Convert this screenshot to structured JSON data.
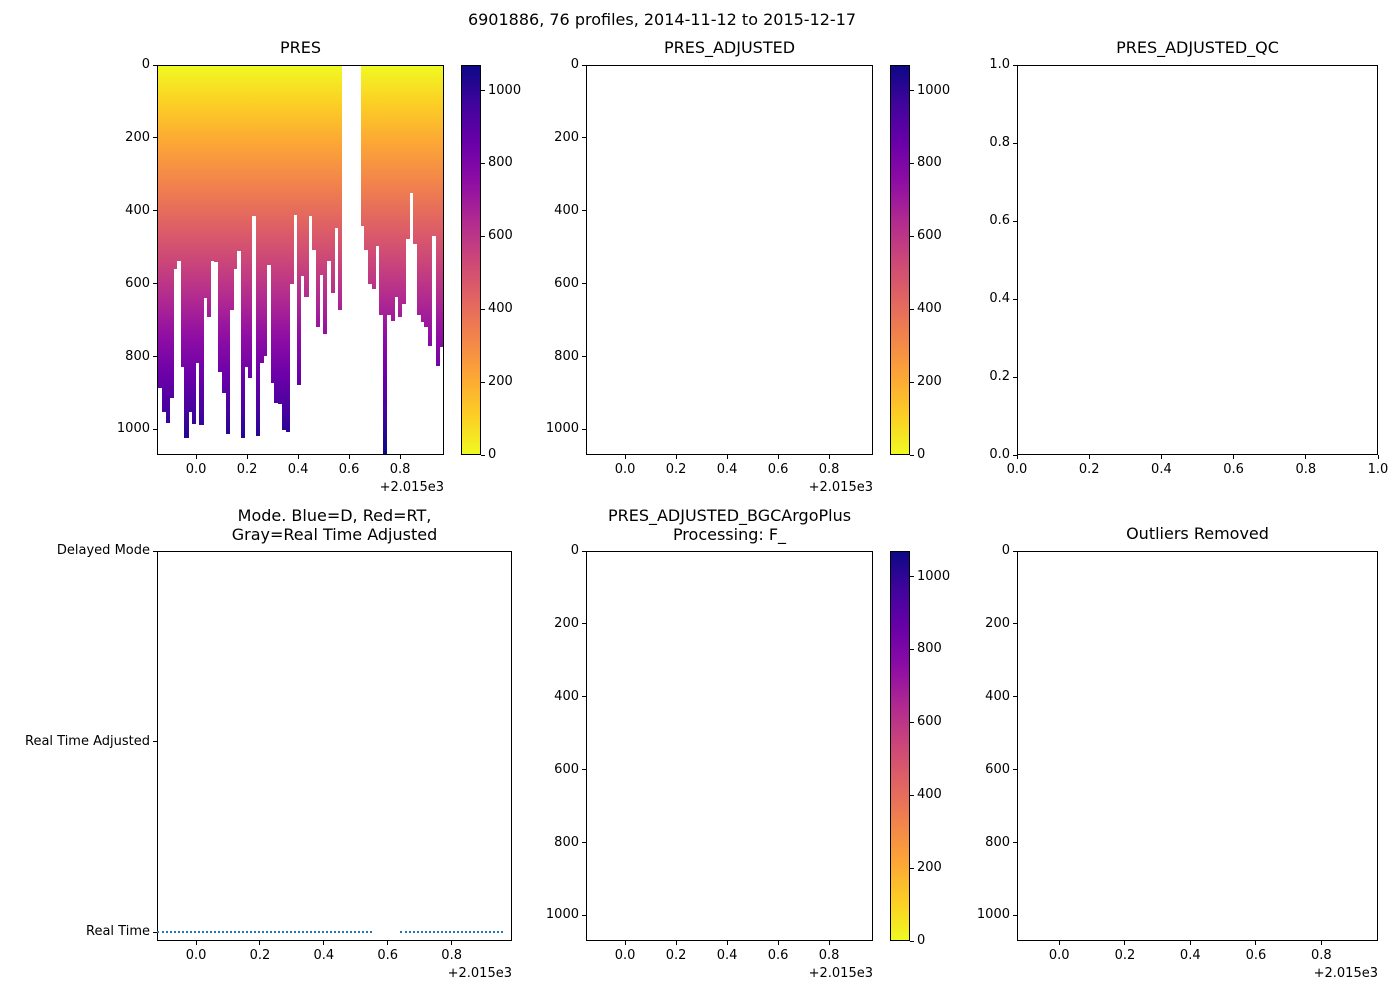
{
  "figure": {
    "suptitle": "6901886, 76 profiles, 2014-11-12 to 2015-12-17",
    "float_id": "6901886",
    "n_profiles": 76,
    "date_range": "2014-11-12 to 2015-12-17",
    "background": "#ffffff"
  },
  "colors": {
    "text": "#000000",
    "axis": "#000000",
    "mode_line_blue": "#1f77b4",
    "plasma_r_stops": [
      "#f0f921",
      "#fcce25",
      "#fca636",
      "#f2844b",
      "#e16462",
      "#cc4778",
      "#b12a90",
      "#8f0da4",
      "#6a00a8",
      "#41049d",
      "#0d0887"
    ]
  },
  "chart_data": [
    {
      "id": "pres",
      "type": "heatmap",
      "title": "PRES",
      "x_ticks": [
        "0.0",
        "0.2",
        "0.4",
        "0.6",
        "0.8"
      ],
      "x_offset_label": "+2.015e3",
      "y_ticks": [
        "0",
        "200",
        "400",
        "600",
        "800",
        "1000"
      ],
      "ylim": [
        0,
        1070
      ],
      "y_inverted": true,
      "colormap": "plasma_r",
      "colorbar": {
        "ticks": [
          "0",
          "200",
          "400",
          "600",
          "800",
          "1000"
        ],
        "vmin": 0,
        "vmax": 1070
      },
      "n_profiles": 76,
      "profile_max_pres": [
        888,
        953,
        985,
        916,
        560,
        537,
        830,
        1025,
        953,
        986,
        820,
        991,
        640,
        691,
        537,
        541,
        843,
        903,
        1014,
        672,
        560,
        510,
        1025,
        830,
        860,
        413,
        1020,
        820,
        800,
        550,
        875,
        930,
        932,
        1005,
        1010,
        600,
        410,
        880,
        580,
        636,
        413,
        508,
        720,
        577,
        739,
        538,
        627,
        446,
        674,
        null,
        null,
        null,
        null,
        null,
        441,
        508,
        600,
        614,
        497,
        688,
        1070,
        688,
        702,
        636,
        692,
        655,
        478,
        349,
        492,
        688,
        707,
        720,
        772,
        469,
        827,
        776
      ]
    },
    {
      "id": "pres_adjusted",
      "type": "heatmap",
      "title": "PRES_ADJUSTED",
      "x_ticks": [
        "0.0",
        "0.2",
        "0.4",
        "0.6",
        "0.8"
      ],
      "x_offset_label": "+2.015e3",
      "y_ticks": [
        "0",
        "200",
        "400",
        "600",
        "800",
        "1000"
      ],
      "ylim": [
        0,
        1070
      ],
      "y_inverted": true,
      "colormap": "plasma_r",
      "colorbar": {
        "ticks": [
          "0",
          "200",
          "400",
          "600",
          "800",
          "1000"
        ],
        "vmin": 0,
        "vmax": 1070
      },
      "values": "empty"
    },
    {
      "id": "pres_adjusted_qc",
      "type": "scatter",
      "title": "PRES_ADJUSTED_QC",
      "x_ticks": [
        "0.0",
        "0.2",
        "0.4",
        "0.6",
        "0.8",
        "1.0"
      ],
      "y_ticks": [
        "1.0",
        "0.8",
        "0.6",
        "0.4",
        "0.2",
        "0.0"
      ],
      "xlim": [
        0,
        1
      ],
      "ylim": [
        0,
        1
      ],
      "values": "empty"
    },
    {
      "id": "mode",
      "type": "line",
      "title_lines": [
        "Mode. Blue=D, Red=RT,",
        "Gray=Real Time Adjusted"
      ],
      "x_ticks": [
        "0.0",
        "0.2",
        "0.4",
        "0.6",
        "0.8"
      ],
      "x_offset_label": "+2.015e3",
      "y_categories": [
        "Delayed Mode",
        "Real Time Adjusted",
        "Real Time"
      ],
      "xlim": [
        -0.122,
        0.989
      ],
      "line": {
        "value": "Real Time",
        "color": "#1f77b4",
        "style": "dotted",
        "segments_x": [
          [
            -0.122,
            0.55
          ],
          [
            0.64,
            0.96
          ]
        ]
      }
    },
    {
      "id": "pres_adjusted_bgcargoplus",
      "type": "heatmap",
      "title_lines": [
        "PRES_ADJUSTED_BGCArgoPlus",
        "Processing: F_"
      ],
      "x_ticks": [
        "0.0",
        "0.2",
        "0.4",
        "0.6",
        "0.8"
      ],
      "x_offset_label": "+2.015e3",
      "y_ticks": [
        "0",
        "200",
        "400",
        "600",
        "800",
        "1000"
      ],
      "ylim": [
        0,
        1070
      ],
      "y_inverted": true,
      "colormap": "plasma_r",
      "colorbar": {
        "ticks": [
          "0",
          "200",
          "400",
          "600",
          "800",
          "1000"
        ],
        "vmin": 0,
        "vmax": 1070
      },
      "values": "empty"
    },
    {
      "id": "outliers_removed",
      "type": "heatmap",
      "title": "Outliers Removed",
      "x_ticks": [
        "0.0",
        "0.2",
        "0.4",
        "0.6",
        "0.8"
      ],
      "x_offset_label": "+2.015e3",
      "y_ticks": [
        "0",
        "200",
        "400",
        "600",
        "800",
        "1000"
      ],
      "ylim": [
        0,
        1070
      ],
      "y_inverted": true,
      "values": "empty"
    }
  ]
}
